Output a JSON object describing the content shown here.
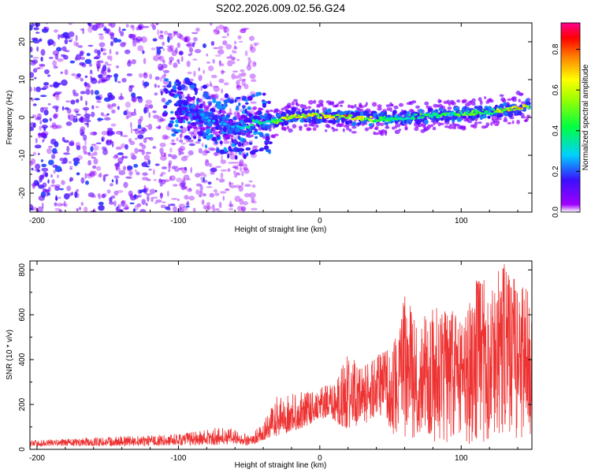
{
  "title": "S202.2026.009.02.56.G24",
  "chart_data": [
    {
      "type": "heatmap",
      "title": "",
      "xlabel": "Height of straight line (km)",
      "ylabel": "Frequency (Hz)",
      "xlim": [
        -205,
        150
      ],
      "ylim": [
        -25,
        25
      ],
      "xticks": [
        -200,
        -100,
        0,
        100
      ],
      "xtick_labels": [
        "-200",
        "-100",
        "0",
        "100"
      ],
      "yticks": [
        -20,
        -10,
        0,
        10,
        20
      ],
      "ytick_labels": [
        "-20",
        "-10",
        "0",
        "10",
        "20"
      ],
      "colorbar": {
        "label": "Normalized spectral amplitude",
        "range": [
          0,
          0.93
        ],
        "ticks": [
          0.0,
          0.2,
          0.4,
          0.6,
          0.8
        ],
        "tick_labels": [
          "0.0",
          "0.2",
          "0.4",
          "0.6",
          "0.8"
        ]
      },
      "signal_ridge": {
        "x": [
          -100,
          -80,
          -60,
          -50,
          -45,
          -40,
          -30,
          -20,
          0,
          20,
          40,
          60,
          80,
          100,
          120,
          148
        ],
        "freq": [
          3,
          0,
          -3,
          -2,
          -1,
          -1.5,
          -1,
          0.5,
          0.5,
          0,
          -0.5,
          0,
          0.5,
          1,
          1.5,
          3
        ],
        "amplitude": [
          0.25,
          0.3,
          0.3,
          0.4,
          0.5,
          0.5,
          0.6,
          0.8,
          0.75,
          0.85,
          0.6,
          0.45,
          0.5,
          0.55,
          0.6,
          0.85
        ]
      },
      "noise_region_x": [
        -205,
        -50
      ]
    },
    {
      "type": "line",
      "title": "",
      "xlabel": "Height of straight line (km)",
      "ylabel": "SNR (10 * v/v)",
      "xlim": [
        -205,
        150
      ],
      "ylim": [
        0,
        840
      ],
      "xticks": [
        -200,
        -100,
        0,
        100
      ],
      "xtick_labels": [
        "-200",
        "-100",
        "0",
        "100"
      ],
      "yticks": [
        0,
        200,
        400,
        600,
        800
      ],
      "ytick_labels": [
        "0",
        "200",
        "400",
        "600",
        "800"
      ],
      "series": [
        {
          "name": "SNR",
          "color": "#ee3333",
          "envelope": {
            "x": [
              -205,
              -150,
              -100,
              -70,
              -60,
              -50,
              -40,
              -30,
              -20,
              -10,
              0,
              10,
              20,
              30,
              40,
              50,
              60,
              70,
              80,
              90,
              100,
              110,
              120,
              130,
              140,
              150
            ],
            "low": [
              15,
              15,
              18,
              20,
              25,
              15,
              40,
              60,
              80,
              100,
              140,
              120,
              90,
              100,
              150,
              80,
              20,
              50,
              20,
              30,
              30,
              20,
              20,
              40,
              50,
              30
            ],
            "high": [
              40,
              55,
              70,
              100,
              90,
              60,
              120,
              240,
              250,
              260,
              280,
              300,
              430,
              360,
              420,
              450,
              700,
              560,
              650,
              660,
              560,
              760,
              760,
              830,
              740,
              700
            ]
          }
        }
      ]
    }
  ]
}
